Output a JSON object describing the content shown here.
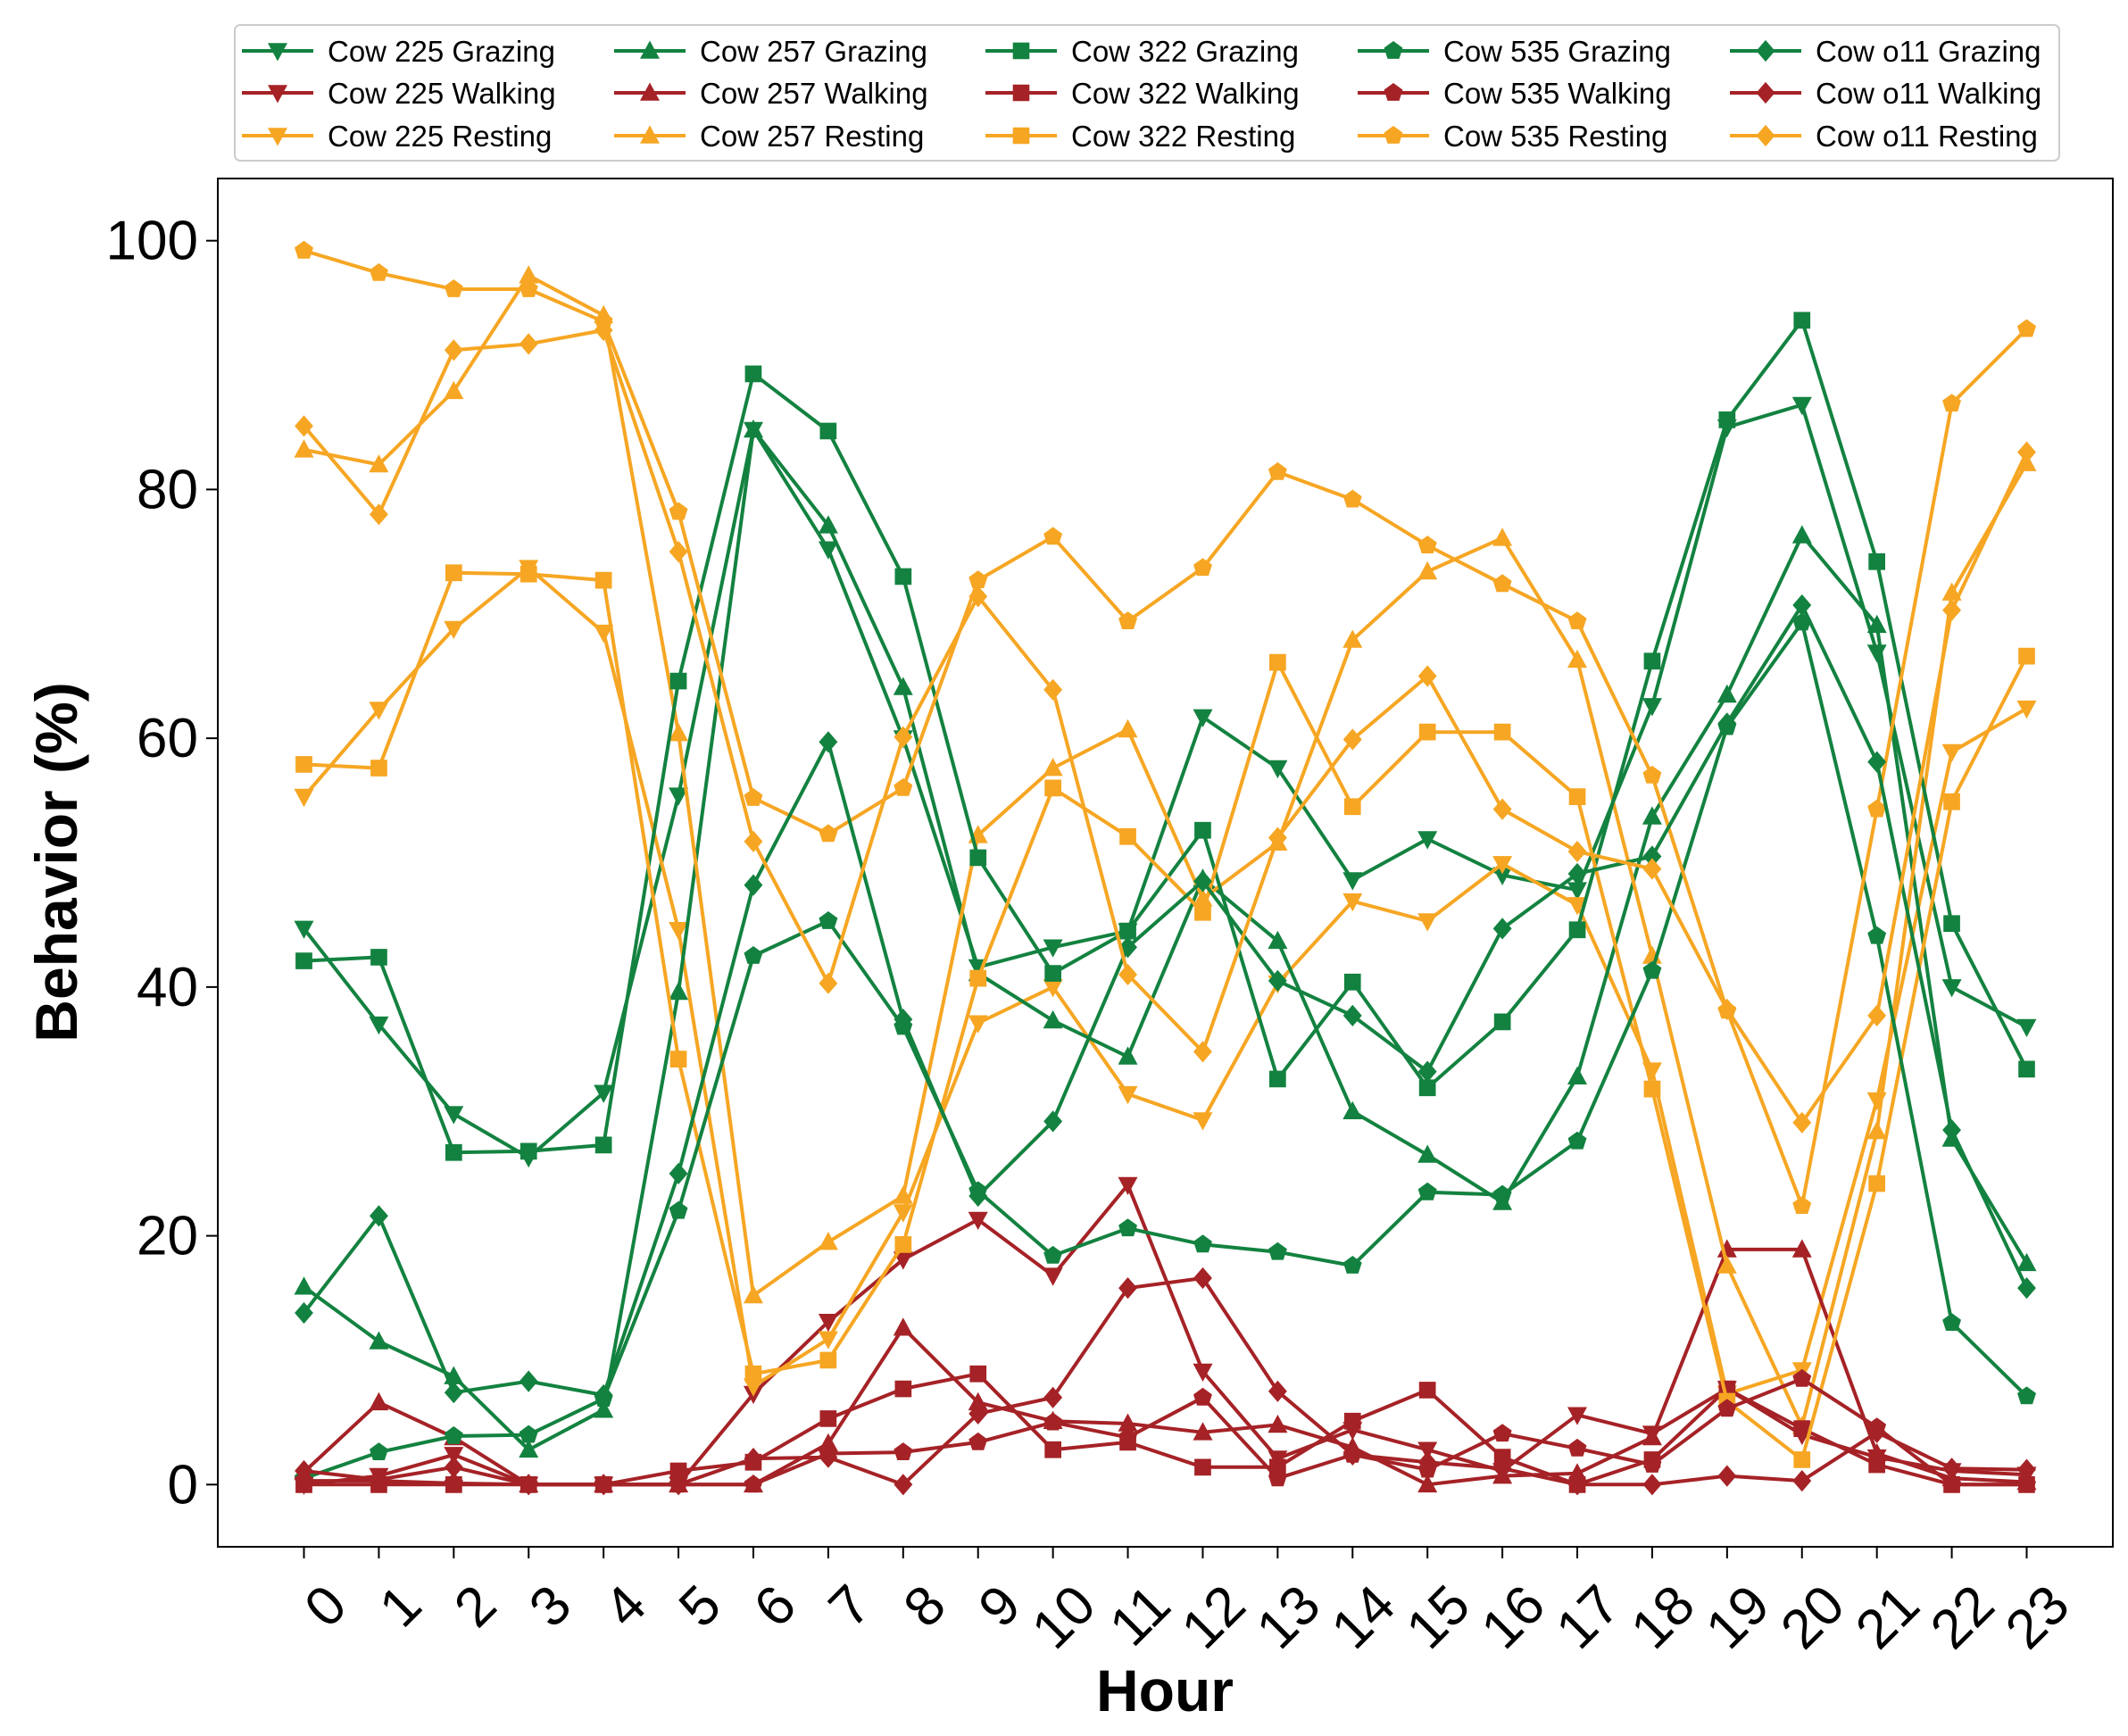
{
  "chart_data": {
    "type": "line",
    "title": "",
    "xlabel": "Hour",
    "ylabel": "Behavior (%)",
    "x": [
      0,
      1,
      2,
      3,
      4,
      5,
      6,
      7,
      8,
      9,
      10,
      11,
      12,
      13,
      14,
      15,
      16,
      17,
      18,
      19,
      20,
      21,
      22,
      23
    ],
    "x_tick_labels": [
      "0",
      "1",
      "2",
      "3",
      "4",
      "5",
      "6",
      "7",
      "8",
      "9",
      "10",
      "11",
      "12",
      "13",
      "14",
      "15",
      "16",
      "17",
      "18",
      "19",
      "20",
      "21",
      "22",
      "23"
    ],
    "xlim": [
      -1.15,
      24.15
    ],
    "ylim": [
      -5,
      105
    ],
    "y_ticks": [
      0,
      20,
      40,
      60,
      80,
      100
    ],
    "y_tick_labels": [
      "0",
      "20",
      "40",
      "60",
      "80",
      "100"
    ],
    "grid": false,
    "legend_position": "top",
    "legend_columns": 5,
    "colors": {
      "Grazing": "#138240",
      "Walking": "#a52226",
      "Resting": "#f6a623"
    },
    "series": [
      {
        "name": "Cow 225 Grazing",
        "behavior": "Grazing",
        "marker": "triangle-down",
        "values": [
          44.7,
          37,
          29.8,
          26.3,
          31.5,
          55.4,
          84.8,
          75.2,
          60,
          41.6,
          43.2,
          44.5,
          61.7,
          57.6,
          48.6,
          51.9,
          49,
          47.8,
          62.6,
          85,
          86.8,
          66.9,
          40,
          36.8
        ]
      },
      {
        "name": "Cow 225 Walking",
        "behavior": "Walking",
        "marker": "triangle-down",
        "values": [
          0,
          0.7,
          2.4,
          0,
          0,
          0,
          7.3,
          13.1,
          18.1,
          21.3,
          16.8,
          24.1,
          9.1,
          2.1,
          4.4,
          2.8,
          1.1,
          5.6,
          4.1,
          7.7,
          4,
          2.2,
          1.1,
          0.8
        ]
      },
      {
        "name": "Cow 225 Resting",
        "behavior": "Resting",
        "marker": "triangle-down",
        "values": [
          55.3,
          62.3,
          68.8,
          73.7,
          68.5,
          44.6,
          7.9,
          11.7,
          21.9,
          37.1,
          40,
          31.4,
          29.3,
          40.3,
          46.9,
          45.3,
          49.9,
          46.6,
          33.3,
          7.3,
          9.2,
          30.9,
          58.9,
          62.4
        ]
      },
      {
        "name": "Cow 257 Grazing",
        "behavior": "Grazing",
        "marker": "triangle-up",
        "values": [
          15.9,
          11.5,
          8.7,
          2.8,
          6,
          39.6,
          84.8,
          77.1,
          64.1,
          41.1,
          37.3,
          34.4,
          48.7,
          43.7,
          30,
          26.5,
          22.7,
          32.8,
          53.7,
          63.5,
          76.3,
          69.1,
          27.8,
          17.8
        ]
      },
      {
        "name": "Cow 257 Walking",
        "behavior": "Walking",
        "marker": "triangle-up",
        "values": [
          1,
          6.6,
          3.8,
          0,
          0,
          0,
          0,
          3.3,
          12.6,
          6.6,
          5.1,
          4.9,
          4.2,
          4.8,
          3,
          0,
          0.7,
          0.9,
          3.8,
          18.9,
          18.9,
          2.5,
          0.5,
          0.2
        ]
      },
      {
        "name": "Cow 257 Resting",
        "behavior": "Resting",
        "marker": "triangle-up",
        "values": [
          83.2,
          82,
          87.9,
          97.2,
          94,
          60.4,
          15.2,
          19.5,
          23.2,
          52.2,
          57.6,
          60.7,
          47.1,
          51.6,
          67.9,
          73.4,
          76.1,
          66.3,
          42.5,
          17.6,
          4.7,
          28.4,
          71.7,
          82.1
        ]
      },
      {
        "name": "Cow 322 Grazing",
        "behavior": "Grazing",
        "marker": "square",
        "values": [
          42.1,
          42.4,
          26.7,
          26.8,
          27.3,
          64.6,
          89.3,
          84.7,
          73,
          50.4,
          41.1,
          44.5,
          52.6,
          32.6,
          40.4,
          31.9,
          37.2,
          44.6,
          66.2,
          85.6,
          93.6,
          74.2,
          45.1,
          33.4
        ]
      },
      {
        "name": "Cow 322 Walking",
        "behavior": "Walking",
        "marker": "square",
        "values": [
          0,
          0,
          0,
          0,
          0,
          1.1,
          1.8,
          5.3,
          7.7,
          8.9,
          2.8,
          3.4,
          1.4,
          1.4,
          5.1,
          7.6,
          2.2,
          0,
          2,
          7.7,
          4.5,
          1.6,
          0,
          0
        ]
      },
      {
        "name": "Cow 322 Resting",
        "behavior": "Resting",
        "marker": "square",
        "values": [
          57.9,
          57.6,
          73.3,
          73.2,
          72.7,
          34.2,
          8.9,
          10,
          19.3,
          40.7,
          56,
          52.1,
          46,
          66.1,
          54.5,
          60.5,
          60.5,
          55.3,
          31.8,
          6.7,
          2,
          24.2,
          54.9,
          66.6
        ]
      },
      {
        "name": "Cow 535 Grazing",
        "behavior": "Grazing",
        "marker": "pentagon",
        "values": [
          0.5,
          2.6,
          3.9,
          4,
          6.9,
          22,
          42.5,
          45.3,
          36.8,
          23.6,
          18.4,
          20.6,
          19.3,
          18.7,
          17.6,
          23.5,
          23.3,
          27.6,
          41.3,
          60.9,
          69.3,
          44.1,
          13,
          7.1
        ]
      },
      {
        "name": "Cow 535 Walking",
        "behavior": "Walking",
        "marker": "pentagon",
        "values": [
          0.3,
          0.3,
          0.1,
          0,
          0,
          0,
          0,
          2.5,
          2.6,
          3.4,
          5,
          3.8,
          7,
          0.5,
          2.4,
          1.2,
          4.1,
          2.9,
          1.6,
          6.1,
          8.5,
          4.6,
          0,
          0
        ]
      },
      {
        "name": "Cow 535 Resting",
        "behavior": "Resting",
        "marker": "pentagon",
        "values": [
          99.2,
          97.4,
          96.1,
          96.1,
          93.5,
          78.2,
          55.2,
          52.3,
          56,
          72.7,
          76.2,
          69.4,
          73.7,
          81.4,
          79.2,
          75.5,
          72.4,
          69.4,
          57,
          38.1,
          22.4,
          54.3,
          86.9,
          92.9
        ]
      },
      {
        "name": "Cow o11 Grazing",
        "behavior": "Grazing",
        "marker": "diamond",
        "values": [
          13.8,
          21.6,
          7.4,
          8.3,
          7.2,
          25,
          48.2,
          59.7,
          37.4,
          23.2,
          29.2,
          43.2,
          48.5,
          40.5,
          37.7,
          33.2,
          44.7,
          49.1,
          50.5,
          61.2,
          70.7,
          58.1,
          28.5,
          15.8
        ]
      },
      {
        "name": "Cow o11 Walking",
        "behavior": "Walking",
        "marker": "diamond",
        "values": [
          1.1,
          0.4,
          1.4,
          0,
          0,
          0,
          2.1,
          2.2,
          0,
          5.7,
          7,
          15.8,
          16.6,
          7.5,
          2.4,
          1.8,
          1.3,
          0,
          0,
          0.7,
          0.3,
          4.2,
          1.3,
          1.2
        ]
      },
      {
        "name": "Cow o11 Resting",
        "behavior": "Resting",
        "marker": "diamond",
        "values": [
          85.1,
          78,
          91.2,
          91.7,
          92.8,
          75,
          51.7,
          40.3,
          60.1,
          71.4,
          63.9,
          41,
          34.8,
          52,
          59.9,
          65,
          54.3,
          50.9,
          49.5,
          38.2,
          29.1,
          37.7,
          70.3,
          83
        ]
      }
    ]
  }
}
